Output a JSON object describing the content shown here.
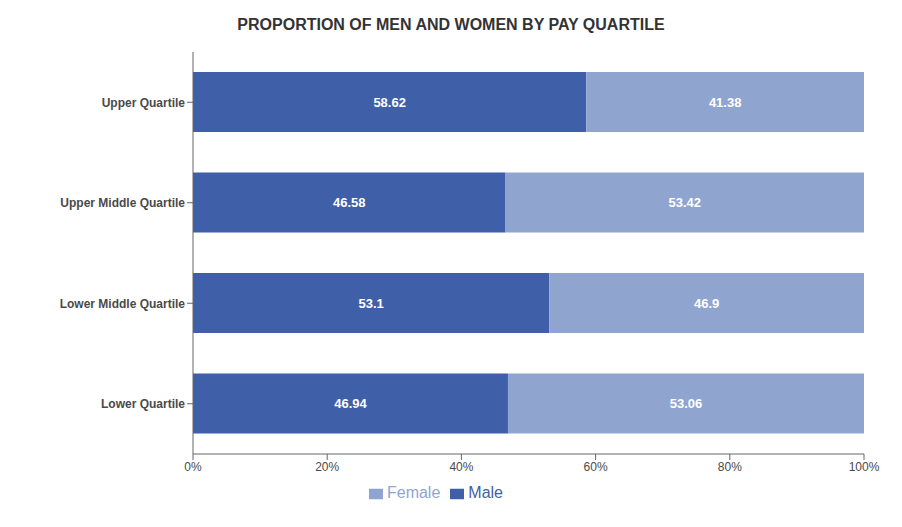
{
  "chart_data": {
    "type": "bar",
    "title": "PROPORTION OF MEN AND WOMEN BY PAY QUARTILE",
    "orientation": "horizontal",
    "stacked": true,
    "data_labels": true,
    "grid": false,
    "legend": "bottom",
    "categories": [
      "Lower Quartile",
      "Lower Middle Quartile",
      "Upper Middle Quartile",
      "Upper Quartile"
    ],
    "series": [
      {
        "name": "Male",
        "color": "#3F5FA8",
        "values": [
          46.94,
          53.1,
          46.58,
          58.62
        ]
      },
      {
        "name": "Female",
        "color": "#8FA5D0",
        "values": [
          53.06,
          46.9,
          53.42,
          41.38
        ]
      }
    ],
    "xlim": [
      0,
      100
    ],
    "xticks": [
      {
        "value": 0,
        "label": "0%"
      },
      {
        "value": 20,
        "label": "20%"
      },
      {
        "value": 40,
        "label": "40%"
      },
      {
        "value": 60,
        "label": "60%"
      },
      {
        "value": 80,
        "label": "80%"
      },
      {
        "value": 100,
        "label": "100%"
      }
    ]
  }
}
